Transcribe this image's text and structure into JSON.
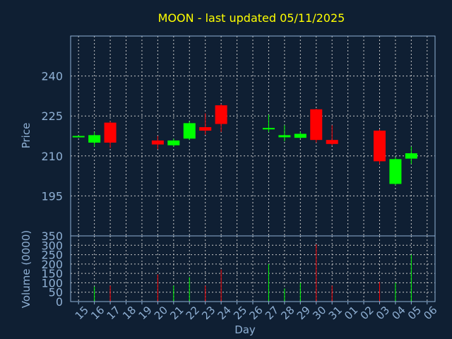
{
  "title": "MOON - last updated 05/11/2025",
  "colors": {
    "background": "#0f1f33",
    "up": "#00ff00",
    "down": "#ff0000",
    "title": "#ffff00",
    "axis": "#8fb0d4"
  },
  "chart_data": [
    {
      "type": "candlestick",
      "ylabel": "Price",
      "ylim": [
        180,
        255
      ],
      "yticks": [
        195,
        210,
        225,
        240
      ],
      "grid": true,
      "x": [
        "15",
        "16",
        "17",
        "18",
        "19",
        "20",
        "21",
        "22",
        "23",
        "24",
        "25",
        "26",
        "27",
        "28",
        "29",
        "30",
        "31",
        "01",
        "02",
        "03",
        "04",
        "05",
        "06"
      ],
      "candles": [
        {
          "day": "15",
          "open": 217.0,
          "close": 217.5,
          "high": 217.6,
          "low": 217.0
        },
        {
          "day": "16",
          "open": 215.0,
          "close": 217.8,
          "high": 219.0,
          "low": 213.5
        },
        {
          "day": "17",
          "open": 222.5,
          "close": 215.0,
          "high": 223.0,
          "low": 213.0
        },
        {
          "day": "20",
          "open": 215.8,
          "close": 214.3,
          "high": 217.5,
          "low": 212.5
        },
        {
          "day": "21",
          "open": 214.0,
          "close": 215.8,
          "high": 216.5,
          "low": 213.5
        },
        {
          "day": "22",
          "open": 216.5,
          "close": 222.3,
          "high": 223.0,
          "low": 216.0
        },
        {
          "day": "23",
          "open": 220.8,
          "close": 219.5,
          "high": 226.0,
          "low": 218.0
        },
        {
          "day": "24",
          "open": 229.0,
          "close": 222.0,
          "high": 229.5,
          "low": 219.0
        },
        {
          "day": "27",
          "open": 220.0,
          "close": 220.5,
          "high": 225.5,
          "low": 219.0
        },
        {
          "day": "28",
          "open": 217.0,
          "close": 217.8,
          "high": 221.5,
          "low": 215.5
        },
        {
          "day": "29",
          "open": 216.8,
          "close": 218.3,
          "high": 219.0,
          "low": 216.5
        },
        {
          "day": "30",
          "open": 227.5,
          "close": 216.0,
          "high": 227.7,
          "low": 215.0
        },
        {
          "day": "31",
          "open": 216.0,
          "close": 214.5,
          "high": 221.5,
          "low": 214.0
        },
        {
          "day": "03",
          "open": 219.5,
          "close": 208.0,
          "high": 220.0,
          "low": 207.0
        },
        {
          "day": "04",
          "open": 199.5,
          "close": 208.8,
          "high": 209.5,
          "low": 199.0
        },
        {
          "day": "05",
          "open": 209.0,
          "close": 211.0,
          "high": 213.5,
          "low": 207.0
        }
      ]
    },
    {
      "type": "bar",
      "ylabel": "Volume (0000)",
      "xlabel": "Day",
      "ylim": [
        0,
        350
      ],
      "yticks": [
        0,
        50,
        100,
        150,
        200,
        250,
        300,
        350
      ],
      "grid": true,
      "x": [
        "15",
        "16",
        "17",
        "18",
        "19",
        "20",
        "21",
        "22",
        "23",
        "24",
        "25",
        "26",
        "27",
        "28",
        "29",
        "30",
        "31",
        "01",
        "02",
        "03",
        "04",
        "05",
        "06"
      ],
      "volumes": [
        {
          "day": "16",
          "value": 80,
          "dir": "up"
        },
        {
          "day": "17",
          "value": 85,
          "dir": "down"
        },
        {
          "day": "20",
          "value": 145,
          "dir": "down"
        },
        {
          "day": "21",
          "value": 85,
          "dir": "up"
        },
        {
          "day": "22",
          "value": 130,
          "dir": "up"
        },
        {
          "day": "23",
          "value": 85,
          "dir": "down"
        },
        {
          "day": "24",
          "value": 170,
          "dir": "down"
        },
        {
          "day": "27",
          "value": 200,
          "dir": "up"
        },
        {
          "day": "28",
          "value": 70,
          "dir": "up"
        },
        {
          "day": "29",
          "value": 100,
          "dir": "up"
        },
        {
          "day": "30",
          "value": 305,
          "dir": "down"
        },
        {
          "day": "31",
          "value": 85,
          "dir": "down"
        },
        {
          "day": "03",
          "value": 105,
          "dir": "down"
        },
        {
          "day": "04",
          "value": 100,
          "dir": "up"
        },
        {
          "day": "05",
          "value": 250,
          "dir": "up"
        }
      ]
    }
  ]
}
